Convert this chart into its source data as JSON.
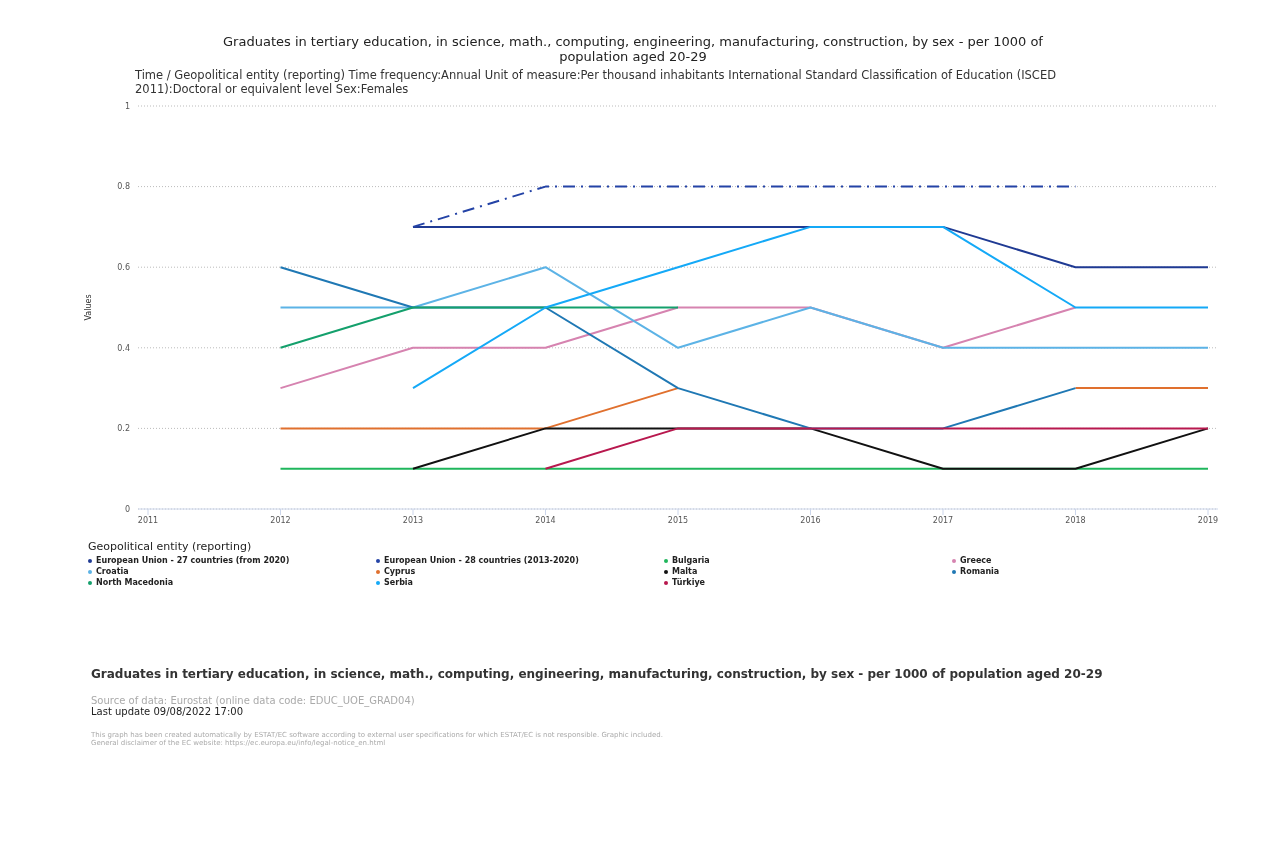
{
  "chart_data": {
    "type": "line",
    "title": "Graduates in tertiary education, in science, math., computing, engineering, manufacturing, construction, by sex - per 1000 of population aged 20-29",
    "subtitle": "Time / Geopolitical entity (reporting)  Time frequency:Annual  Unit of measure:Per thousand inhabitants  International Standard Classification of Education (ISCED 2011):Doctoral or equivalent level  Sex:Females",
    "ylabel": "Values",
    "legend_title": "Geopolitical entity (reporting)",
    "categories": [
      "2011",
      "2012",
      "2013",
      "2014",
      "2015",
      "2016",
      "2017",
      "2018",
      "2019"
    ],
    "series": [
      {
        "name": "European Union - 27 countries (from 2020)",
        "color": "#1f3a93",
        "values": [
          null,
          null,
          0.7,
          0.7,
          0.7,
          0.7,
          0.7,
          0.6,
          0.6
        ]
      },
      {
        "name": "European Union - 28 countries (2013-2020)",
        "color": "#2443a6",
        "line_style": "dashed",
        "values": [
          null,
          null,
          0.7,
          0.8,
          0.8,
          0.8,
          0.8,
          0.8,
          null
        ]
      },
      {
        "name": "Bulgaria",
        "color": "#1fb65c",
        "values": [
          null,
          0.1,
          0.1,
          0.1,
          0.1,
          0.1,
          0.1,
          0.1,
          0.1
        ]
      },
      {
        "name": "Greece",
        "color": "#d683b0",
        "values": [
          null,
          0.3,
          0.4,
          0.4,
          0.5,
          0.5,
          0.4,
          0.5,
          null
        ]
      },
      {
        "name": "Croatia",
        "color": "#5cb3e6",
        "values": [
          null,
          0.5,
          0.5,
          0.6,
          0.4,
          0.5,
          0.4,
          0.4,
          0.4
        ]
      },
      {
        "name": "Cyprus",
        "color": "#e0702e",
        "values": [
          null,
          0.2,
          0.2,
          0.2,
          0.3,
          null,
          null,
          0.3,
          0.3
        ]
      },
      {
        "name": "Malta",
        "color": "#111111",
        "values": [
          null,
          null,
          0.1,
          0.2,
          0.2,
          0.2,
          0.1,
          0.1,
          0.2
        ]
      },
      {
        "name": "Romania",
        "color": "#1f78b4",
        "values": [
          null,
          0.6,
          0.5,
          0.5,
          0.3,
          0.2,
          0.2,
          0.3,
          null
        ]
      },
      {
        "name": "North Macedonia",
        "color": "#14a06c",
        "values": [
          null,
          0.4,
          0.5,
          0.5,
          0.5,
          null,
          null,
          null,
          null
        ]
      },
      {
        "name": "Serbia",
        "color": "#14a9f7",
        "values": [
          null,
          null,
          0.3,
          0.5,
          0.6,
          0.7,
          0.7,
          0.5,
          0.5
        ]
      },
      {
        "name": "Türkiye",
        "color": "#b8184e",
        "values": [
          null,
          null,
          null,
          0.1,
          0.2,
          0.2,
          0.2,
          0.2,
          0.2
        ]
      }
    ],
    "ylim": [
      0,
      1
    ],
    "yticks": [
      0,
      0.2,
      0.4,
      0.6,
      0.8,
      1
    ],
    "grid": "y",
    "legend": "bottom",
    "marker": "none",
    "line_style": "solid",
    "annotations": [
      "Graduates in tertiary education, in science, math., computing, engineering, manufacturing, construction, by sex - per 1000 of population aged 20-29",
      "Source of data: Eurostat (online data code: EDUC_UOE_GRAD04)",
      "Last update 09/08/2022 17:00",
      "This graph has been created automatically by ESTAT/EC software according to external user specifications for which ESTAT/EC is not responsible. Graphic included.",
      "General disclaimer of the EC website: https://ec.europa.eu/info/legal-notice_en.html"
    ]
  }
}
